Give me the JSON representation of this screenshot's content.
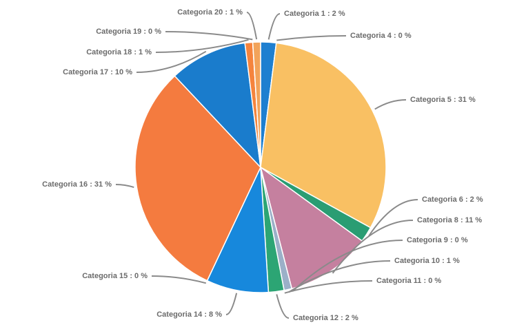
{
  "chart_data": {
    "type": "pie",
    "labels": [
      "Categoria 1 : 2 %",
      "Categoria 4 : 0 %",
      "Categoria 5 : 31 %",
      "Categoria 6 : 2 %",
      "Categoria 8 : 11 %",
      "Categoria 9 : 0 %",
      "Categoria 10 : 1 %",
      "Categoria 11 : 0 %",
      "Categoria 12 : 2 %",
      "Categoria 14 : 8 %",
      "Categoria 15 : 0 %",
      "Categoria 16 : 31 %",
      "Categoria 17 : 10 %",
      "Categoria 18 : 1 %",
      "Categoria 19 : 0 %",
      "Categoria 20 : 1 %"
    ],
    "values": [
      2,
      0,
      31,
      2,
      11,
      0,
      1,
      0,
      2,
      8,
      0,
      31,
      10,
      1,
      0,
      1
    ],
    "colors": [
      "#1e7fd0",
      "#f4b860",
      "#f9c063",
      "#2a9d73",
      "#c5809f",
      "#d9a0b8",
      "#9bb0c8",
      "#c7b8d8",
      "#2ca574",
      "#1788dc",
      "#f08040",
      "#f47b3f",
      "#1a7ccc",
      "#f5843d",
      "#e8a060",
      "#f2a35a"
    ]
  }
}
